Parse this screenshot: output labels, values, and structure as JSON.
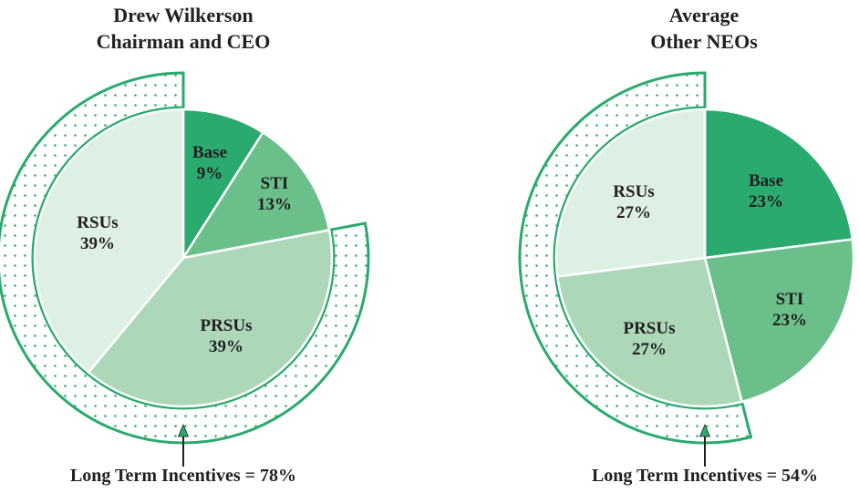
{
  "colors": {
    "base": "#2aaa6e",
    "sti": "#6abf8b",
    "prsus": "#acd8b9",
    "rsus": "#ddf0e3",
    "ring": "#2aaa6e",
    "dots": "#3aa874",
    "text": "#231f20"
  },
  "chart_data": [
    {
      "type": "pie",
      "title_lines": [
        "Drew Wilkerson",
        "Chairman and CEO"
      ],
      "slices": [
        {
          "key": "base",
          "label": "Base",
          "value": 9,
          "display": "9%"
        },
        {
          "key": "sti",
          "label": "STI",
          "value": 13,
          "display": "13%"
        },
        {
          "key": "prsus",
          "label": "PRSUs",
          "value": 39,
          "display": "39%"
        },
        {
          "key": "rsus",
          "label": "RSUs",
          "value": 39,
          "display": "39%"
        }
      ],
      "highlight": {
        "slices": [
          "prsus",
          "rsus"
        ],
        "caption": "Long Term Incentives = 78%"
      }
    },
    {
      "type": "pie",
      "title_lines": [
        "Average",
        "Other NEOs"
      ],
      "slices": [
        {
          "key": "base",
          "label": "Base",
          "value": 23,
          "display": "23%"
        },
        {
          "key": "sti",
          "label": "STI",
          "value": 23,
          "display": "23%"
        },
        {
          "key": "prsus",
          "label": "PRSUs",
          "value": 27,
          "display": "27%"
        },
        {
          "key": "rsus",
          "label": "RSUs",
          "value": 27,
          "display": "27%"
        }
      ],
      "highlight": {
        "slices": [
          "prsus",
          "rsus"
        ],
        "caption": "Long Term Incentives = 54%"
      }
    }
  ]
}
